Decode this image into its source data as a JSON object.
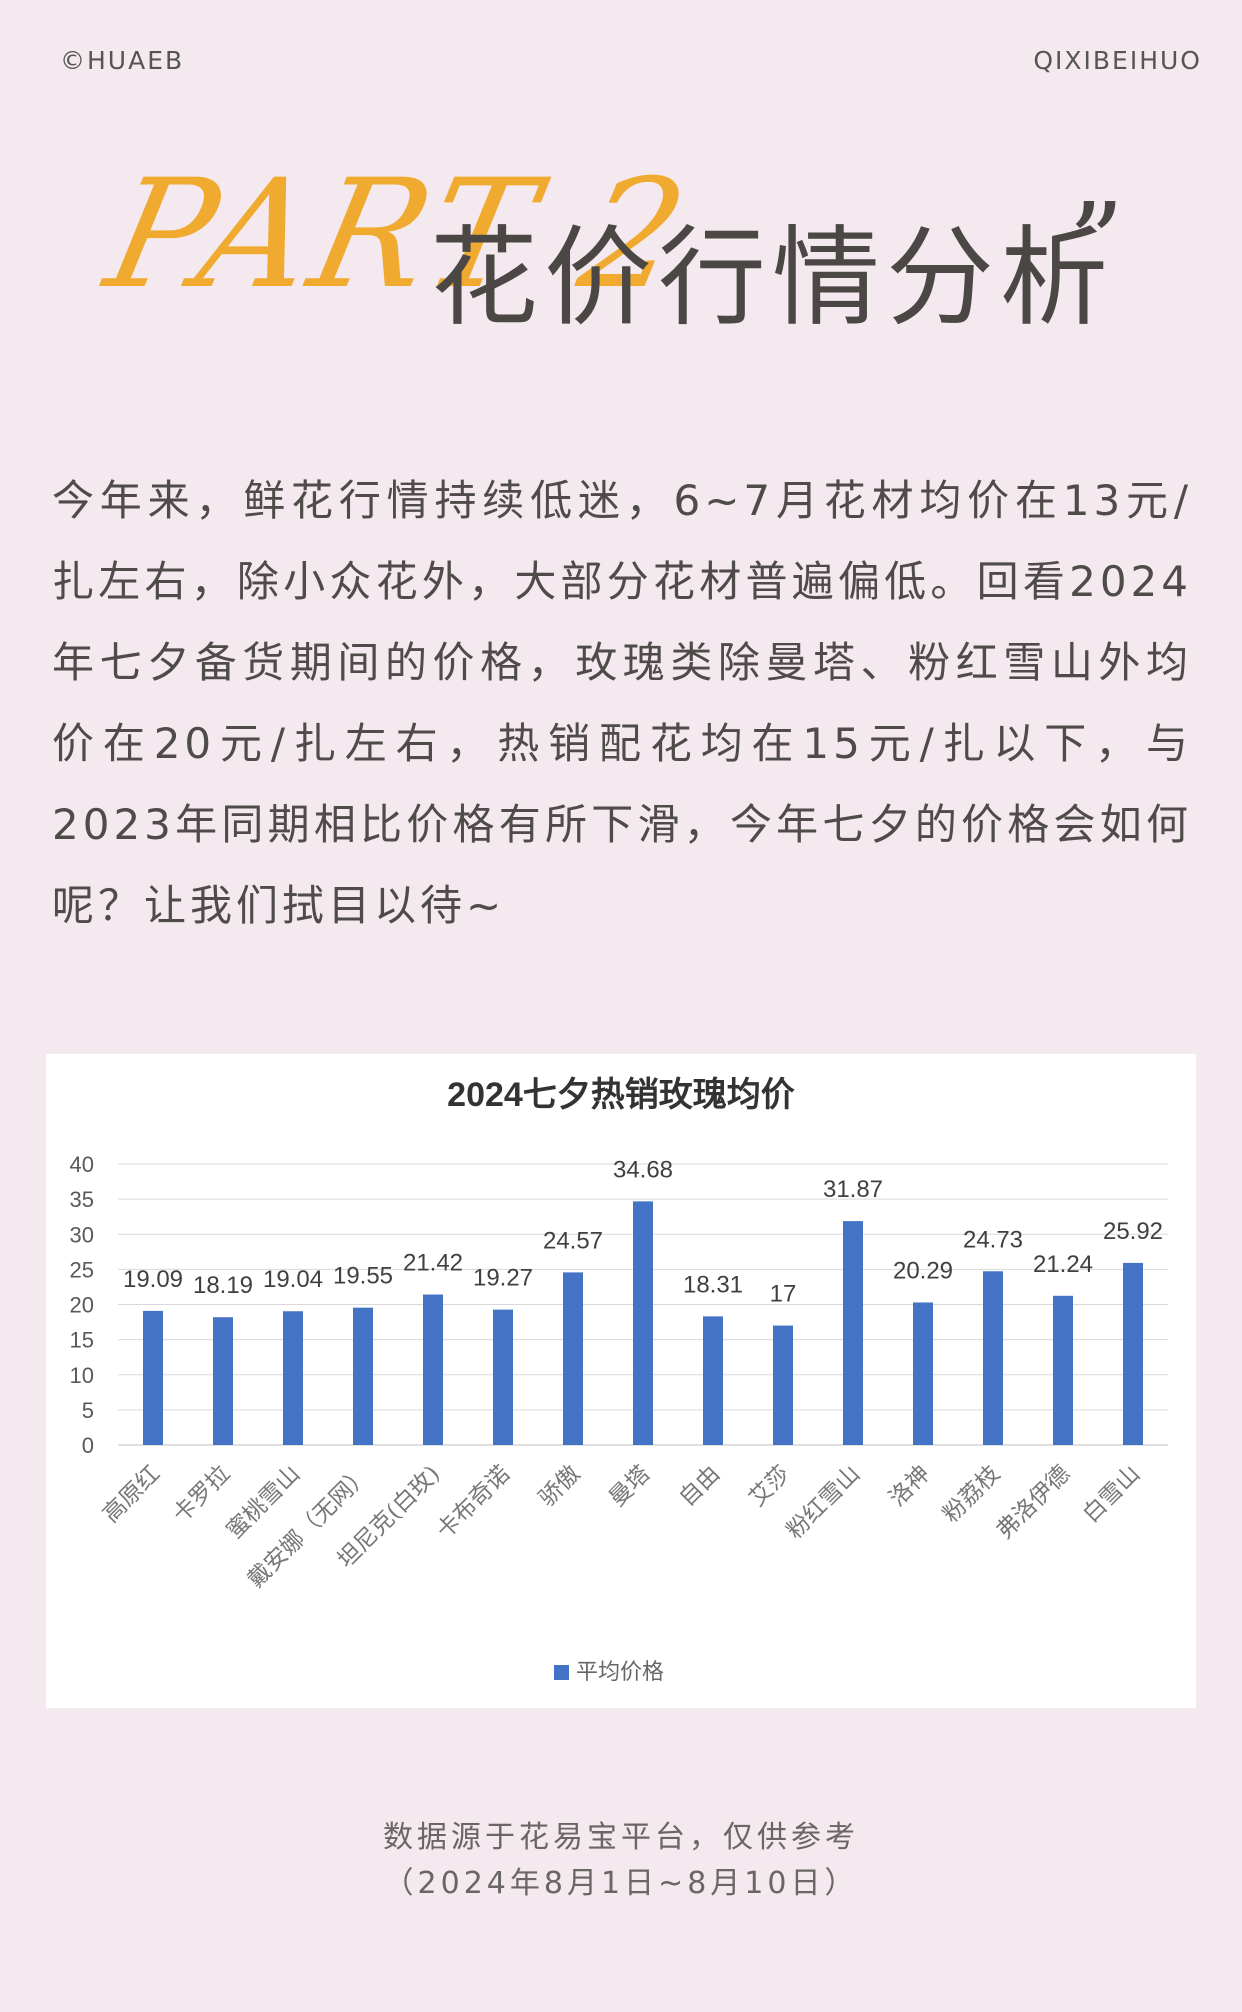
{
  "header": {
    "brand_left": "©HUAEB",
    "brand_right": "QIXIBEIHUO",
    "part_label": "PART 2",
    "title": "花价行情分析",
    "quote_mark": "”"
  },
  "intro_text": "今年来，鲜花行情持续低迷，6~7月花材均价在13元/扎左右，除小众花外，大部分花材普遍偏低。回看2024年七夕备货期间的价格，玫瑰类除曼塔、粉红雪山外均价在20元/扎左右，热销配花均在15元/扎以下，与2023年同期相比价格有所下滑，今年七夕的价格会如何呢？让我们拭目以待~",
  "chart_data": {
    "type": "bar",
    "title": "2024七夕热销玫瑰均价",
    "categories": [
      "高原红",
      "卡罗拉",
      "蜜桃雪山",
      "戴安娜（无网）",
      "坦尼克(白玫)",
      "卡布奇诺",
      "骄傲",
      "曼塔",
      "自由",
      "艾莎",
      "粉红雪山",
      "洛神",
      "粉荔枝",
      "弗洛伊德",
      "白雪山"
    ],
    "series": [
      {
        "name": "平均价格",
        "values": [
          19.09,
          18.19,
          19.04,
          19.55,
          21.42,
          19.27,
          24.57,
          34.68,
          18.31,
          17,
          31.87,
          20.29,
          24.73,
          21.24,
          25.92
        ],
        "value_labels": [
          "19.09",
          "18.19",
          "19.04",
          "19.55",
          "21.42",
          "19.27",
          "24.57",
          "34.68",
          "18.31",
          "17",
          "31.87",
          "20.29",
          "24.73",
          "21.24",
          "25.92"
        ]
      }
    ],
    "ylim": [
      0,
      40
    ],
    "yticks": [
      "0",
      "5",
      "10",
      "15",
      "20",
      "25",
      "30",
      "35",
      "40"
    ],
    "grid": true,
    "legend_position": "bottom",
    "bar_color": "#4472c4"
  },
  "footer": {
    "line1": "数据源于花易宝平台，仅供参考",
    "line2": "（2024年8月1日~8月10日）"
  }
}
